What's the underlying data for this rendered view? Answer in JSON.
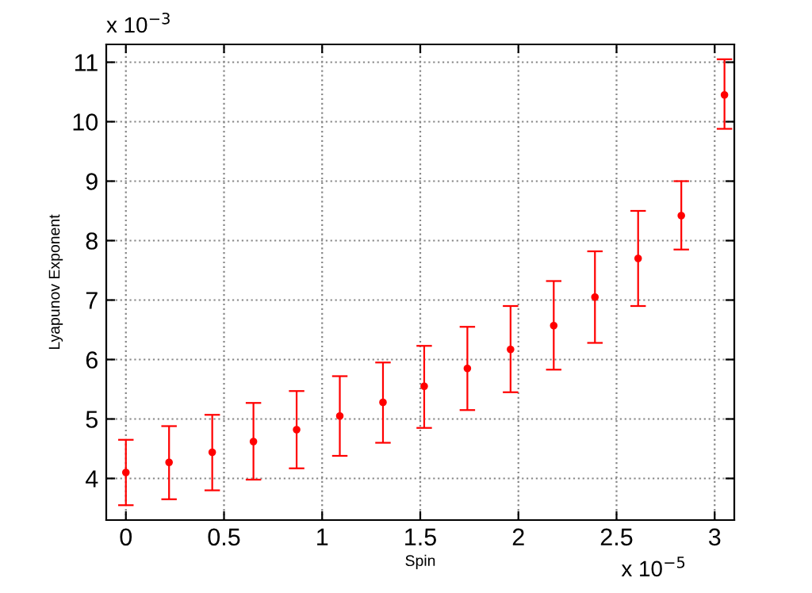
{
  "chart_data": {
    "type": "scatter",
    "xlabel": "Spin",
    "ylabel": "Lyapunov Exponent",
    "annotations": [
      "x 10$^{−3}$",
      "x 10$^{−5}$"
    ],
    "x": [
      0,
      0.22,
      0.44,
      0.65,
      0.87,
      1.09,
      1.31,
      1.52,
      1.74,
      1.96,
      2.18,
      2.39,
      2.61,
      2.83,
      3.05
    ],
    "series": [
      {
        "color": "#ff0000",
        "values": [
          4.1,
          4.27,
          4.44,
          4.62,
          4.82,
          5.05,
          5.28,
          5.55,
          5.85,
          6.17,
          6.57,
          7.05,
          7.7,
          8.42,
          10.45
        ],
        "errors": [
          [
            3.55,
            4.65
          ],
          [
            3.65,
            4.88
          ],
          [
            3.8,
            5.07
          ],
          [
            3.98,
            5.27
          ],
          [
            4.17,
            5.47
          ],
          [
            4.38,
            5.72
          ],
          [
            4.6,
            5.95
          ],
          [
            4.85,
            6.23
          ],
          [
            5.15,
            6.55
          ],
          [
            5.45,
            6.9
          ],
          [
            5.83,
            7.32
          ],
          [
            6.28,
            7.82
          ],
          [
            6.9,
            8.5
          ],
          [
            7.85,
            9.0
          ],
          [
            9.88,
            11.05
          ]
        ]
      }
    ],
    "marker": "circle",
    "grid": true,
    "xlim": [
      -0.1,
      3.1
    ],
    "xticks": [
      0,
      0.5,
      1,
      1.5,
      2,
      2.5,
      3
    ],
    "ylim": [
      3.3,
      11.3
    ],
    "yticks": [
      4,
      5,
      6,
      7,
      8,
      9,
      10,
      11
    ]
  }
}
